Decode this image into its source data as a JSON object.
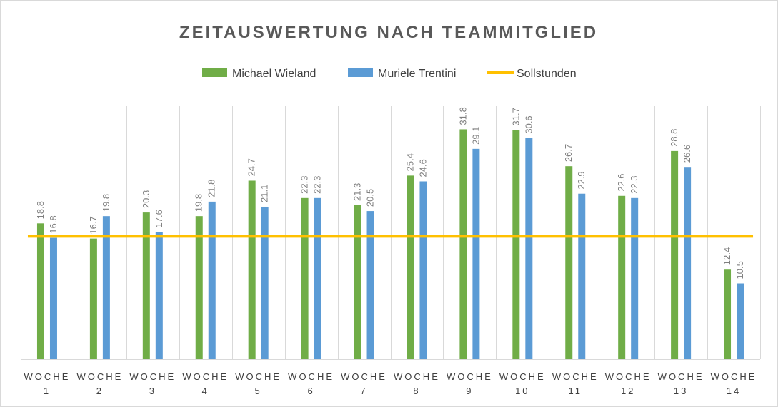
{
  "chart_data": {
    "type": "bar",
    "title": "ZEITAUSWERTUNG NACH TEAMMITGLIED",
    "categories": [
      [
        "WOCHE",
        "1"
      ],
      [
        "WOCHE",
        "2"
      ],
      [
        "WOCHE",
        "3"
      ],
      [
        "WOCHE",
        "4"
      ],
      [
        "WOCHE",
        "5"
      ],
      [
        "WOCHE",
        "6"
      ],
      [
        "WOCHE",
        "7"
      ],
      [
        "WOCHE",
        "8"
      ],
      [
        "WOCHE",
        "9"
      ],
      [
        "WOCHE",
        "10"
      ],
      [
        "WOCHE",
        "11"
      ],
      [
        "WOCHE",
        "12"
      ],
      [
        "WOCHE",
        "13"
      ],
      [
        "WOCHE",
        "14"
      ]
    ],
    "series": [
      {
        "name": "Michael Wieland",
        "type": "bar",
        "color": "#70ad47",
        "values": [
          18.8,
          16.7,
          20.3,
          19.8,
          24.7,
          22.3,
          21.3,
          25.4,
          31.8,
          31.7,
          26.7,
          22.6,
          28.8,
          12.4
        ]
      },
      {
        "name": "Muriele Trentini",
        "type": "bar",
        "color": "#5b9bd5",
        "values": [
          16.8,
          19.8,
          17.6,
          21.8,
          21.1,
          22.3,
          20.5,
          24.6,
          29.1,
          30.6,
          22.9,
          22.3,
          26.6,
          10.5
        ]
      },
      {
        "name": "Sollstunden",
        "type": "line",
        "color": "#ffc000",
        "values": [
          17,
          17,
          17,
          17,
          17,
          17,
          17,
          17,
          17,
          17,
          17,
          17,
          17,
          17
        ]
      }
    ],
    "ylim": [
      0,
      35
    ],
    "xlabel": "",
    "ylabel": "",
    "grid": "vertical",
    "legend": "top-center"
  }
}
